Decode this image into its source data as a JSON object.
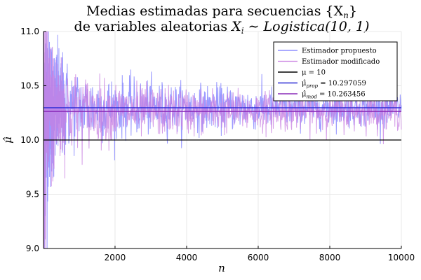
{
  "chart_data": {
    "type": "line",
    "title_line1": "Medias estimadas para secuencias {X",
    "title_line1_sub": "n",
    "title_line1_end": "}",
    "title_line2_prefix": "de variables aleatorias ",
    "title_line2_var": "X",
    "title_line2_sub": "i",
    "title_line2_dist": " ∼ Logistica(10, 1)",
    "xlabel": "n",
    "ylabel": "μ̂",
    "xlim": [
      1,
      10000
    ],
    "ylim": [
      9.0,
      11.0
    ],
    "xticks": [
      2000,
      4000,
      6000,
      8000,
      10000
    ],
    "xtick_labels": [
      "2000",
      "4000",
      "6000",
      "8000",
      "10000"
    ],
    "yticks": [
      9.0,
      9.5,
      10.0,
      10.5,
      11.0
    ],
    "ytick_labels": [
      "9.0",
      "9.5",
      "10.0",
      "10.5",
      "11.0"
    ],
    "grid": true,
    "legend_position": "top-right",
    "series": [
      {
        "name": "Estimador propuesto",
        "kind": "noisy",
        "converges_to": 10.297059,
        "color": "#7878ff"
      },
      {
        "name": "Estimador modificado",
        "kind": "noisy",
        "converges_to": 10.263456,
        "color": "#c77ee0"
      },
      {
        "name": "μ = 10",
        "kind": "hline",
        "value": 10,
        "color": "#000000"
      },
      {
        "name": "μ̂prop = 10.297059",
        "kind": "hline",
        "value": 10.297059,
        "color": "#2a2ad6"
      },
      {
        "name": "μ̂mod = 10.263456",
        "kind": "hline",
        "value": 10.263456,
        "color": "#8a2bb8"
      }
    ],
    "legend": [
      {
        "label": "Estimador propuesto",
        "sub": "",
        "tail": ""
      },
      {
        "label": "Estimador modificado",
        "sub": "",
        "tail": ""
      },
      {
        "label": "μ = 10",
        "sub": "",
        "tail": ""
      },
      {
        "label": "μ̂",
        "sub": "prop",
        "tail": " = 10.297059"
      },
      {
        "label": "μ̂",
        "sub": "mod",
        "tail": " = 10.263456"
      }
    ]
  }
}
